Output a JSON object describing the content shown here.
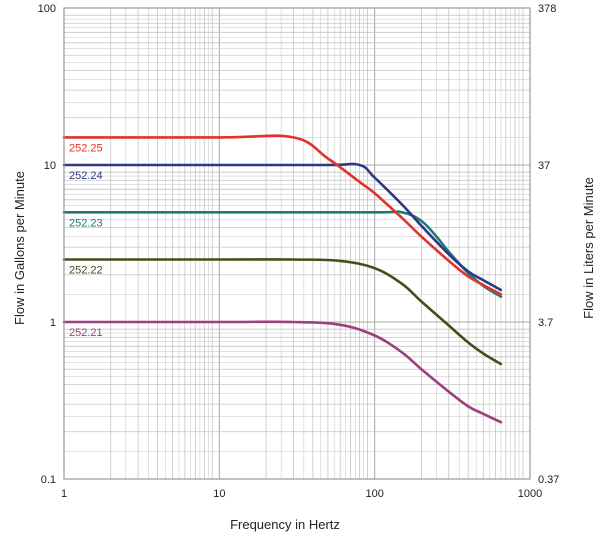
{
  "chart_data": {
    "type": "line",
    "title": "",
    "xlabel": "Frequency in Hertz",
    "ylabel": "Flow in Gallons per Minute",
    "ylabel_right": "Flow in Liters per Minute",
    "x_scale": "log",
    "y_scale": "log",
    "xlim": [
      1,
      1000
    ],
    "ylim": [
      0.1,
      100
    ],
    "x_ticks": [
      {
        "value": 1,
        "label": "1"
      },
      {
        "value": 10,
        "label": "10"
      },
      {
        "value": 100,
        "label": "100"
      },
      {
        "value": 1000,
        "label": "1000"
      }
    ],
    "y_ticks_left": [
      {
        "value": 0.1,
        "label": "0.1"
      },
      {
        "value": 1,
        "label": "1"
      },
      {
        "value": 10,
        "label": "10"
      },
      {
        "value": 100,
        "label": "100"
      }
    ],
    "y_ticks_right": [
      {
        "value": 0.1,
        "label": "0.37"
      },
      {
        "value": 1,
        "label": "3.7"
      },
      {
        "value": 10,
        "label": "37"
      },
      {
        "value": 100,
        "label": "378"
      }
    ],
    "grid": true,
    "frame_color": "#9a9a9a",
    "grid_color": "#c4c4c4",
    "series": [
      {
        "name": "252.21",
        "color": "#9b3f7d",
        "x": [
          1,
          10,
          30,
          60,
          100,
          150,
          200,
          300,
          400,
          500,
          650
        ],
        "y": [
          1.0,
          1.0,
          1.0,
          0.96,
          0.82,
          0.64,
          0.5,
          0.36,
          0.29,
          0.26,
          0.23
        ]
      },
      {
        "name": "252.22",
        "color": "#4a4a1c",
        "x": [
          1,
          10,
          30,
          60,
          100,
          150,
          200,
          300,
          400,
          500,
          650
        ],
        "y": [
          2.5,
          2.5,
          2.5,
          2.45,
          2.2,
          1.75,
          1.35,
          0.95,
          0.74,
          0.63,
          0.54
        ]
      },
      {
        "name": "252.23",
        "color": "#1d7b74",
        "x": [
          1,
          10,
          100,
          150,
          200,
          250,
          300,
          400,
          500,
          650
        ],
        "y": [
          5.0,
          5.0,
          5.0,
          5.0,
          4.4,
          3.5,
          2.8,
          2.05,
          1.7,
          1.45
        ]
      },
      {
        "name": "252.24",
        "color": "#2c3a86",
        "x": [
          1,
          10,
          50,
          80,
          100,
          150,
          200,
          300,
          400,
          500,
          650
        ],
        "y": [
          10.0,
          10.0,
          10.0,
          10.0,
          8.3,
          5.6,
          4.1,
          2.7,
          2.1,
          1.85,
          1.6
        ]
      },
      {
        "name": "252.25",
        "color": "#e0332b",
        "x": [
          1,
          10,
          30,
          50,
          80,
          100,
          150,
          200,
          300,
          400,
          500,
          650
        ],
        "y": [
          15.0,
          15.0,
          15.0,
          11.0,
          7.8,
          6.6,
          4.6,
          3.5,
          2.45,
          1.95,
          1.72,
          1.5
        ]
      }
    ]
  }
}
